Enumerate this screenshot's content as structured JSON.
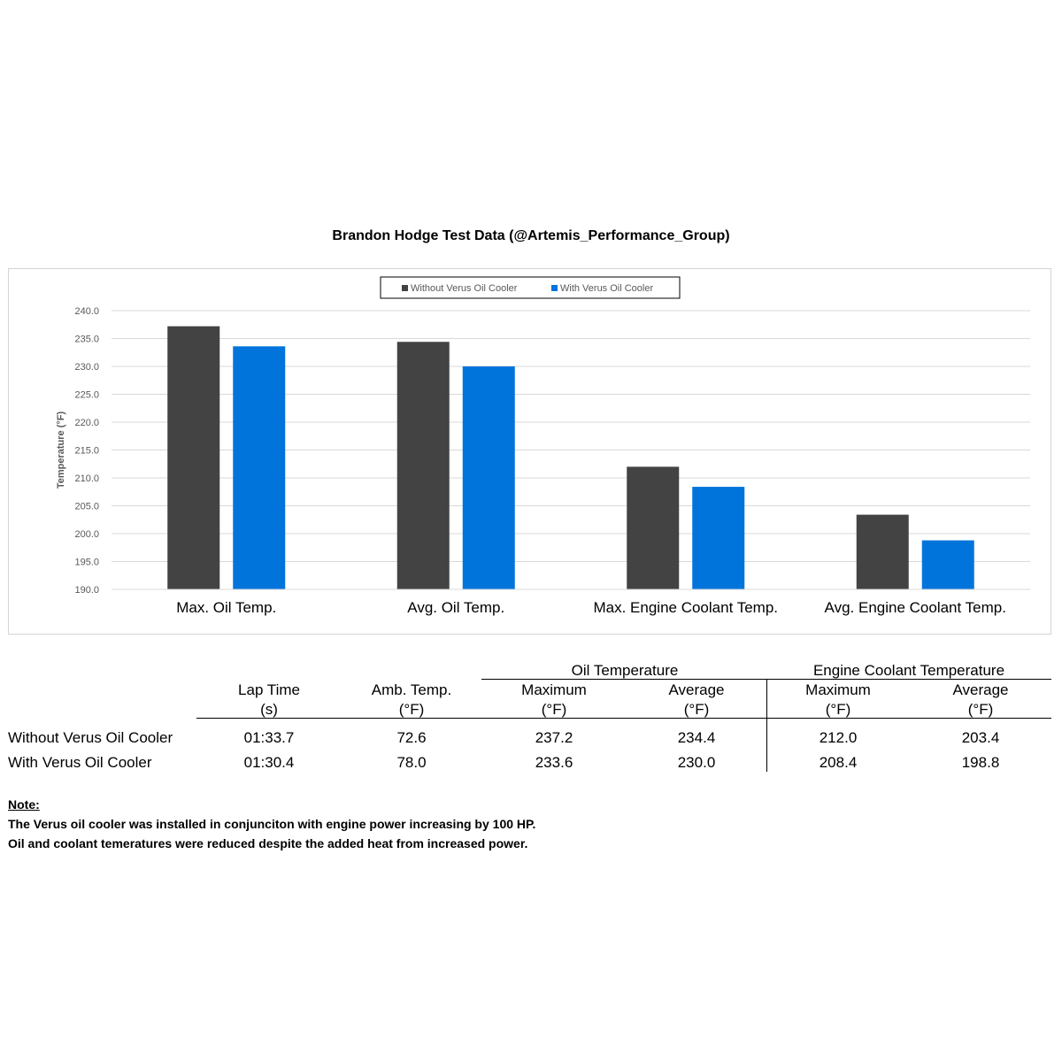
{
  "chart_data": {
    "type": "bar",
    "title": "Brandon Hodge Test Data (@Artemis_Performance_Group)",
    "ylabel": "Temperature (°F)",
    "ylim": [
      190,
      240
    ],
    "yticks": [
      "190.0",
      "195.0",
      "200.0",
      "205.0",
      "210.0",
      "215.0",
      "220.0",
      "225.0",
      "230.0",
      "235.0",
      "240.0"
    ],
    "grid": true,
    "legend_position": "top-center",
    "categories": [
      "Max. Oil Temp.",
      "Avg. Oil Temp.",
      "Max. Engine Coolant Temp.",
      "Avg. Engine Coolant Temp."
    ],
    "series": [
      {
        "name": "Without Verus Oil Cooler",
        "color": "#434343",
        "values": [
          237.2,
          234.4,
          212.0,
          203.4
        ]
      },
      {
        "name": "With Verus Oil Cooler",
        "color": "#0174dc",
        "values": [
          233.6,
          230.0,
          208.4,
          198.8
        ]
      }
    ]
  },
  "table": {
    "group_oil": "Oil Temperature",
    "group_coolant": "Engine Coolant Temperature",
    "headers": {
      "lap_time": "Lap Time",
      "lap_time_unit": "(s)",
      "amb_temp": "Amb. Temp.",
      "amb_temp_unit": "(°F)",
      "oil_max": "Maximum",
      "oil_max_unit": "(°F)",
      "oil_avg": "Average",
      "oil_avg_unit": "(°F)",
      "cool_max": "Maximum",
      "cool_max_unit": "(°F)",
      "cool_avg": "Average",
      "cool_avg_unit": "(°F)"
    },
    "rows": [
      {
        "label": "Without Verus Oil Cooler",
        "lap_time": "01:33.7",
        "amb_temp": "72.6",
        "oil_max": "237.2",
        "oil_avg": "234.4",
        "cool_max": "212.0",
        "cool_avg": "203.4"
      },
      {
        "label": "With Verus Oil Cooler",
        "lap_time": "01:30.4",
        "amb_temp": "78.0",
        "oil_max": "233.6",
        "oil_avg": "230.0",
        "cool_max": "208.4",
        "cool_avg": "198.8"
      }
    ]
  },
  "notes": {
    "heading": "Note:",
    "line1": "The Verus oil cooler was installed in conjunciton with engine power increasing by 100 HP.",
    "line2": "Oil and coolant temeratures were reduced despite the added heat from increased power."
  }
}
